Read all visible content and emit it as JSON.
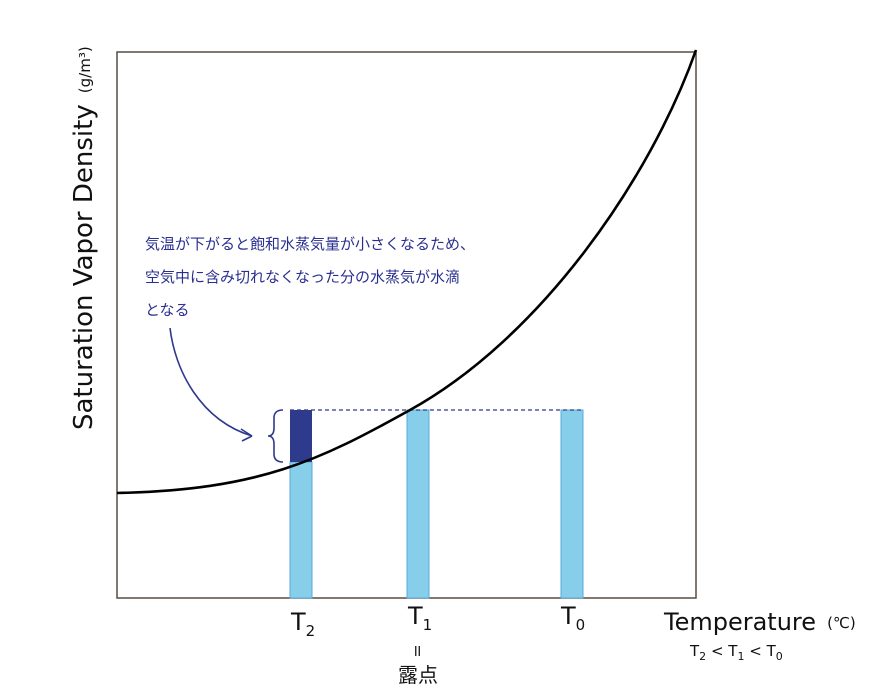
{
  "axis": {
    "y_label": "Saturation Vapor Density",
    "y_unit": "(g/m³)",
    "x_label": "Temperature",
    "x_unit": "(℃)"
  },
  "ticks": [
    {
      "main": "T",
      "sub": "2"
    },
    {
      "main": "T",
      "sub": "1"
    },
    {
      "main": "T",
      "sub": "0"
    }
  ],
  "condition": {
    "parts": [
      "T",
      "2",
      " < ",
      "T",
      "1",
      " < ",
      "T",
      "0"
    ]
  },
  "dew_point": {
    "equals_symbol": "॥",
    "label": "露点"
  },
  "annotation": {
    "lines": [
      "気温が下がると飽和水蒸気量が小さくなるため、",
      "空気中に含み切れなくなった分の水蒸気が水滴",
      "となる"
    ]
  },
  "colors": {
    "curve": "#000000",
    "vapor_bar": "#87ceeb",
    "condensed_water": "#2e3a8c",
    "annotation_text": "#2a2f8f",
    "frame": "#5a4a42",
    "dashed_line": "#2e3a8c"
  },
  "chart_data": {
    "type": "diagram",
    "description_points": {
      "water_vapor_content_level": "same for T0, T1, T2",
      "T1": "dew point (curve meets vapor level)",
      "T2": "excess vapor above curve condenses"
    }
  }
}
